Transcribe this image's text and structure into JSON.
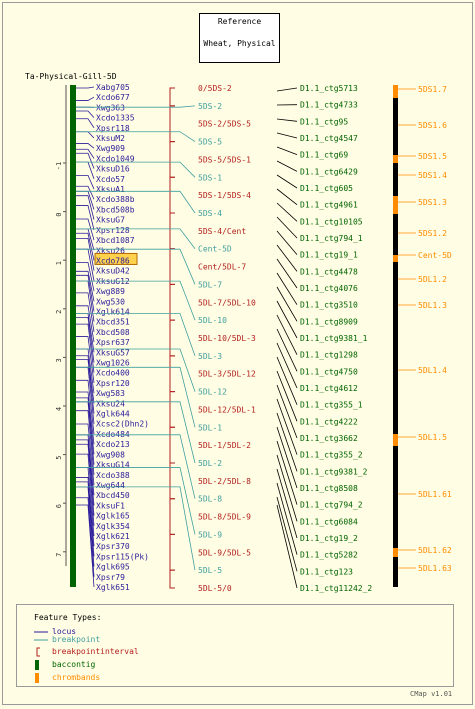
{
  "reference": {
    "line1": "Reference",
    "line2": "Wheat, Physical"
  },
  "map_title": "Ta-Physical-Gill-5D",
  "colors": {
    "locus": "#2a1b9a",
    "breakpoint": "#3f9f9f",
    "interval": "#b32020",
    "baccontig": "#006400",
    "chrombands": "#ff8c00"
  },
  "axis": {
    "ticks": [
      "-1",
      "0",
      "1",
      "2",
      "3",
      "4",
      "5",
      "6",
      "7"
    ]
  },
  "loci": [
    "Xabg705",
    "Xcdo677",
    "Xwg363",
    "Xcdo1335",
    "Xpsr118",
    "XksuM2",
    "Xwg909",
    "Xcdo1049",
    "XksuD16",
    "Xcdo57",
    "XksuA1",
    "Xcdo388b",
    "Xbcd508b",
    "XksuG7",
    "Xpsr128",
    "Xbcd1087",
    "Xksu26",
    "Xcdo786",
    "XksuD42",
    "XksuG12",
    "Xwg889",
    "Xwg530",
    "Xglk614",
    "Xbcd351",
    "Xbcd508",
    "Xpsr637",
    "XksuG57",
    "Xwg1026",
    "Xcdo400",
    "Xpsr120",
    "Xwg583",
    "Xksu24",
    "Xglk644",
    "Xcsc2(Dhn2)",
    "Xcdo484",
    "Xcdo213",
    "Xwg908",
    "XksuG14",
    "Xcdo388",
    "Xwg644",
    "Xbcd450",
    "XksuF1",
    "Xglk165",
    "Xglk354",
    "Xglk621",
    "Xpsr370",
    "Xpsr115(Pk)",
    "Xglk695",
    "Xpsr79",
    "Xglk651"
  ],
  "highlight_locus": "Xcdo786",
  "breakpoint_labels": [
    {
      "text": "0/5DS-2",
      "type": "interval"
    },
    {
      "text": "5DS-2",
      "type": "breakpoint"
    },
    {
      "text": "5DS-2/5DS-5",
      "type": "interval"
    },
    {
      "text": "5DS-5",
      "type": "breakpoint"
    },
    {
      "text": "5DS-5/5DS-1",
      "type": "interval"
    },
    {
      "text": "5DS-1",
      "type": "breakpoint"
    },
    {
      "text": "5DS-1/5DS-4",
      "type": "interval"
    },
    {
      "text": "5DS-4",
      "type": "breakpoint"
    },
    {
      "text": "5DS-4/Cent",
      "type": "interval"
    },
    {
      "text": "Cent-5D",
      "type": "breakpoint"
    },
    {
      "text": "Cent/5DL-7",
      "type": "interval"
    },
    {
      "text": "5DL-7",
      "type": "breakpoint"
    },
    {
      "text": "5DL-7/5DL-10",
      "type": "interval"
    },
    {
      "text": "5DL-10",
      "type": "breakpoint"
    },
    {
      "text": "5DL-10/5DL-3",
      "type": "interval"
    },
    {
      "text": "5DL-3",
      "type": "breakpoint"
    },
    {
      "text": "5DL-3/5DL-12",
      "type": "interval"
    },
    {
      "text": "5DL-12",
      "type": "breakpoint"
    },
    {
      "text": "5DL-12/5DL-1",
      "type": "interval"
    },
    {
      "text": "5DL-1",
      "type": "breakpoint"
    },
    {
      "text": "5DL-1/5DL-2",
      "type": "interval"
    },
    {
      "text": "5DL-2",
      "type": "breakpoint"
    },
    {
      "text": "5DL-2/5DL-8",
      "type": "interval"
    },
    {
      "text": "5DL-8",
      "type": "breakpoint"
    },
    {
      "text": "5DL-8/5DL-9",
      "type": "interval"
    },
    {
      "text": "5DL-9",
      "type": "breakpoint"
    },
    {
      "text": "5DL-9/5DL-5",
      "type": "interval"
    },
    {
      "text": "5DL-5",
      "type": "breakpoint"
    },
    {
      "text": "5DL-5/0",
      "type": "interval"
    }
  ],
  "contigs": [
    "D1.1_ctg5713",
    "D1.1_ctg4733",
    "D1.1_ctg95",
    "D1.1_ctg4547",
    "D1.1_ctg69",
    "D1.1_ctg6429",
    "D1.1_ctg605",
    "D1.1_ctg4961",
    "D1.1_ctg10105",
    "D1.1_ctg794_1",
    "D1.1_ctg19_1",
    "D1.1_ctg4478",
    "D1.1_ctg4076",
    "D1.1_ctg3510",
    "D1.1_ctg8909",
    "D1.1_ctg9381_1",
    "D1.1_ctg1298",
    "D1.1_ctg4750",
    "D1.1_ctg4612",
    "D1.1_ctg355_1",
    "D1.1_ctg4222",
    "D1.1_ctg3662",
    "D1.1_ctg355_2",
    "D1.1_ctg9381_2",
    "D1.1_ctg8508",
    "D1.1_ctg794_2",
    "D1.1_ctg6084",
    "D1.1_ctg19_2",
    "D1.1_ctg5282",
    "D1.1_ctg123",
    "D1.1_ctg11242_2"
  ],
  "chrom_bands": [
    "5DS1.7",
    "5DS1.6",
    "5DS1.5",
    "5DS1.4",
    "5DS1.3",
    "5DS1.2",
    "Cent-5D",
    "5DL1.2",
    "5DL1.3",
    "5DL1.4",
    "5DL1.5",
    "5DL1.61",
    "5DL1.62",
    "5DL1.63"
  ],
  "legend": {
    "title": "Feature Types:",
    "items": [
      {
        "label": "locus",
        "icon": "line-icon"
      },
      {
        "label": "breakpoint",
        "icon": "line-icon"
      },
      {
        "label": "breakpointinterval",
        "icon": "bracket-icon"
      },
      {
        "label": "baccontig",
        "icon": "bar-icon"
      },
      {
        "label": "chrombands",
        "icon": "bar-icon"
      }
    ]
  },
  "version": "CMap v1.01"
}
